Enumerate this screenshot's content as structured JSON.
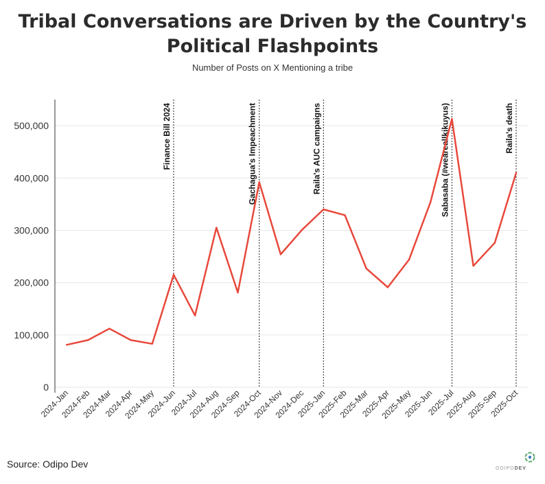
{
  "title_line1": "Tribal Conversations are Driven by the Country's",
  "title_line2": "Political Flashpoints",
  "subtitle": "Number of Posts on X Mentioning a tribe",
  "source": "Source: Odipo Dev",
  "logo": {
    "text_light": "ODIPO",
    "text_bold": "DEV"
  },
  "colors": {
    "line": "#e8483b",
    "grid": "#e6e6e6",
    "axis": "#333333",
    "event_line": "#222222"
  },
  "chart_data": {
    "type": "line",
    "title": "Tribal Conversations are Driven by the Country's Political Flashpoints",
    "subtitle": "Number of Posts on X Mentioning a tribe",
    "xlabel": "",
    "ylabel": "",
    "ylim": [
      0,
      550000
    ],
    "yticks": [
      0,
      100000,
      200000,
      300000,
      400000,
      500000
    ],
    "ytick_labels": [
      "0",
      "100,000",
      "200,000",
      "300,000",
      "400,000",
      "500,000"
    ],
    "grid": true,
    "categories": [
      "2024-Jan",
      "2024-Feb",
      "2024-Mar",
      "2024-Apr",
      "2024-May",
      "2024-Jun",
      "2024-Jul",
      "2024-Aug",
      "2024-Sep",
      "2024-Oct",
      "2024-Nov",
      "2024-Dec",
      "2025-Jan",
      "2025-Feb",
      "2025-Mar",
      "2025-Apr",
      "2025-May",
      "2025-Jun",
      "2025-Jul",
      "2025-Aug",
      "2025-Sep",
      "2025-Oct"
    ],
    "series": [
      {
        "values": [
          81000,
          90000,
          112000,
          90000,
          83000,
          215000,
          137000,
          305000,
          181000,
          392000,
          254000,
          301000,
          340000,
          329000,
          227000,
          191000,
          244000,
          354000,
          513000,
          232000,
          276000,
          410000
        ]
      }
    ],
    "annotations": [
      {
        "x": "2024-Jun",
        "label": "Finance Bill 2024"
      },
      {
        "x": "2024-Oct",
        "label": "Gachagua's Impeachment"
      },
      {
        "x": "2025-Jan",
        "label": "Raila's AUC campaigns"
      },
      {
        "x": "2025-Jul",
        "label": "Sabasaba (#weareallkikuyus)"
      },
      {
        "x": "2025-Oct",
        "label": "Raila's death"
      }
    ]
  }
}
